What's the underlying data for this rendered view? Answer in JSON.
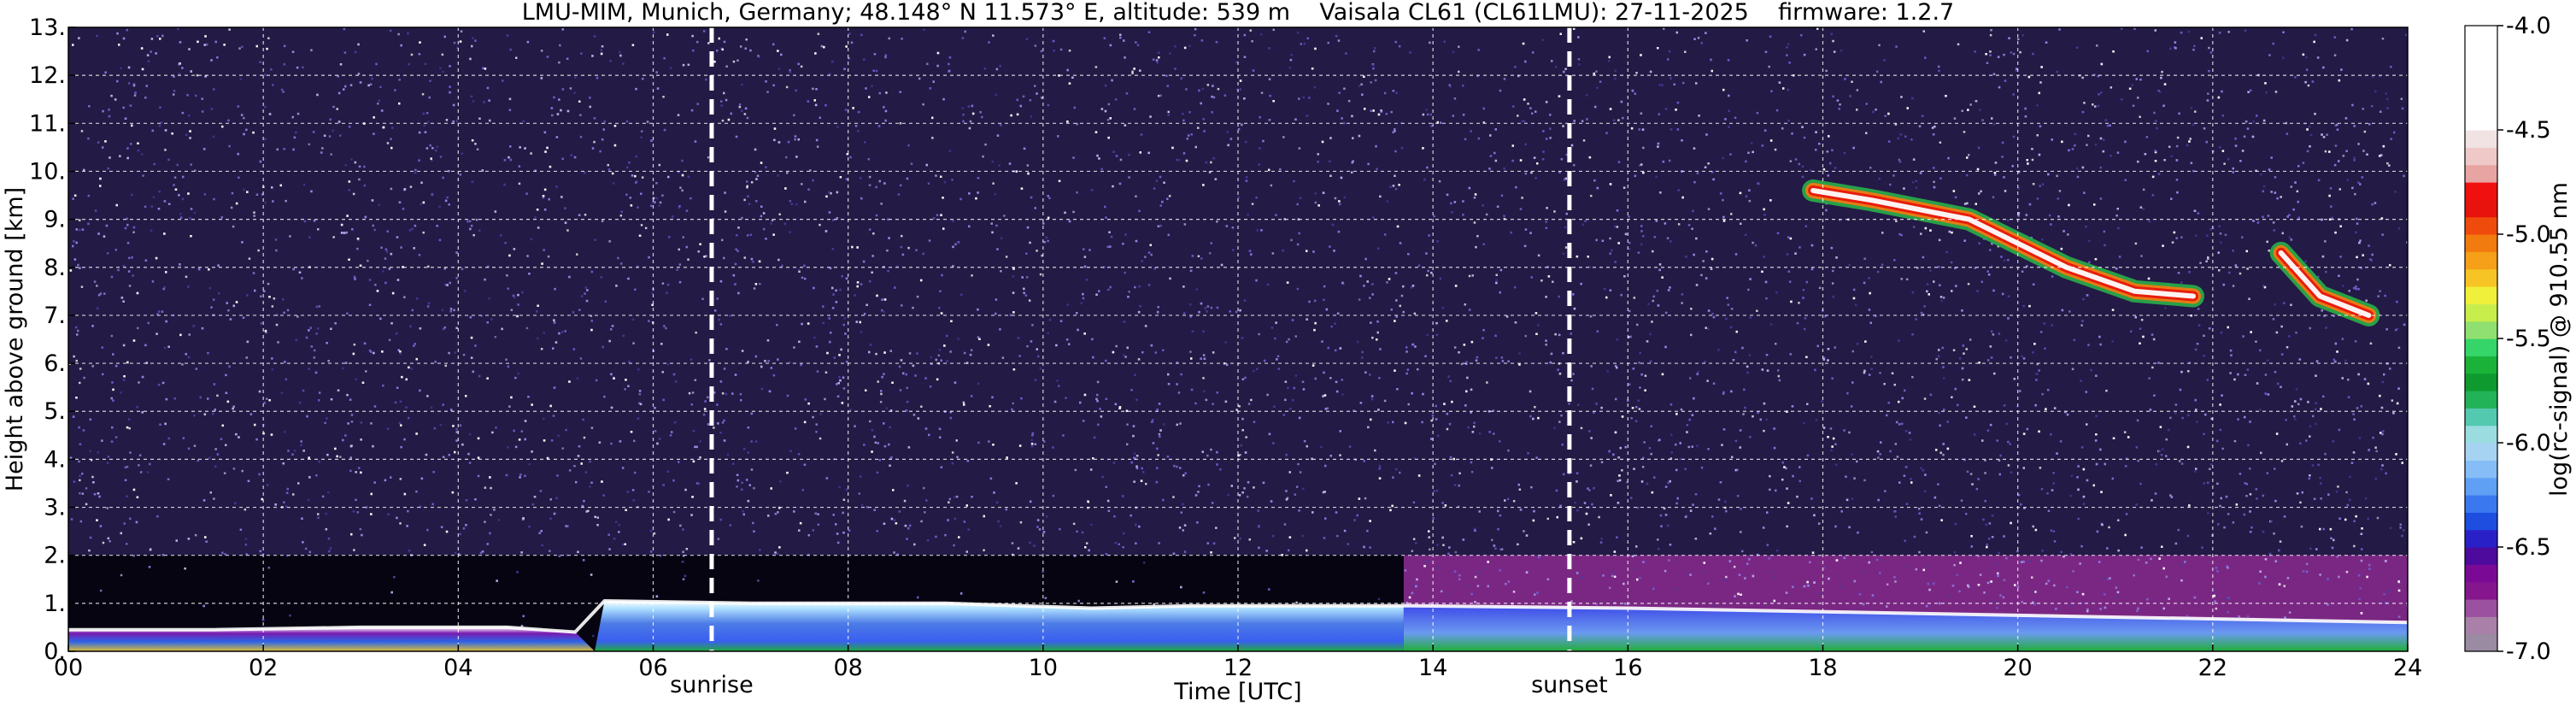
{
  "chart_data": {
    "type": "heatmap",
    "title": "LMU-MIM, Munich, Germany; 48.148° N 11.573° E, altitude: 539 m    Vaisala CL61 (CL61LMU): 27-11-2025    firmware: 1.2.7",
    "xlabel": "Time [UTC]",
    "ylabel": "Height above ground [km]",
    "xlim": [
      0,
      24
    ],
    "ylim": [
      0,
      13
    ],
    "x_ticks": [
      "00",
      "02",
      "04",
      "06",
      "08",
      "10",
      "12",
      "14",
      "16",
      "18",
      "20",
      "22",
      "24"
    ],
    "y_ticks": [
      "0.",
      "1.",
      "2.",
      "3.",
      "4.",
      "5.",
      "6.",
      "7.",
      "8.",
      "9.",
      "10.",
      "11.",
      "12.",
      "13."
    ],
    "grid": true,
    "events": [
      {
        "label": "sunrise",
        "time": 6.6
      },
      {
        "label": "sunset",
        "time": 15.4
      }
    ],
    "colorbar": {
      "label": "log(rc-signal) @ 910.55 nm",
      "min": -7.0,
      "max": -4.0,
      "ticks": [
        "-4.0",
        "-4.5",
        "-5.0",
        "-5.5",
        "-6.0",
        "-6.5",
        "-7.0"
      ],
      "colors": [
        "#9a8aa2",
        "#a880a8",
        "#9b50a0",
        "#86168e",
        "#7a0a95",
        "#4e0a9c",
        "#2a20c8",
        "#1d4ee0",
        "#3a78f0",
        "#5fa0f5",
        "#86bdf6",
        "#a7d3f3",
        "#9adce0",
        "#53c9b0",
        "#22b257",
        "#0e9a2e",
        "#1bb23a",
        "#35d56a",
        "#8fe070",
        "#c8ee4c",
        "#f0f03a",
        "#f6c424",
        "#f5a018",
        "#f27b0f",
        "#ef4b0c",
        "#e8130c",
        "#f01010",
        "#e8a3a3",
        "#efc8c8",
        "#f1e3e3",
        "#ffffff",
        "#ffffff",
        "#ffffff",
        "#ffffff",
        "#ffffff",
        "#ffffff"
      ]
    },
    "features": [
      {
        "type": "boundary_layer_top",
        "values": [
          [
            0,
            0.45
          ],
          [
            1.5,
            0.45
          ],
          [
            3,
            0.5
          ],
          [
            4.5,
            0.5
          ],
          [
            5.2,
            0.4
          ],
          [
            5.5,
            1.05
          ],
          [
            7,
            1.0
          ],
          [
            9,
            1.0
          ],
          [
            10.5,
            0.9
          ],
          [
            11.5,
            0.95
          ],
          [
            13.7,
            0.95
          ],
          [
            16,
            0.9
          ],
          [
            20,
            0.75
          ],
          [
            24,
            0.6
          ]
        ]
      },
      {
        "type": "cirrus",
        "values": [
          [
            17.9,
            9.6
          ],
          [
            18.5,
            9.4
          ],
          [
            19.5,
            9.0
          ],
          [
            20.5,
            8.0
          ],
          [
            21.2,
            7.5
          ],
          [
            21.8,
            7.4
          ]
        ]
      },
      {
        "type": "cirrus",
        "values": [
          [
            22.7,
            8.3
          ],
          [
            23.1,
            7.4
          ],
          [
            23.6,
            7.0
          ]
        ]
      }
    ]
  }
}
